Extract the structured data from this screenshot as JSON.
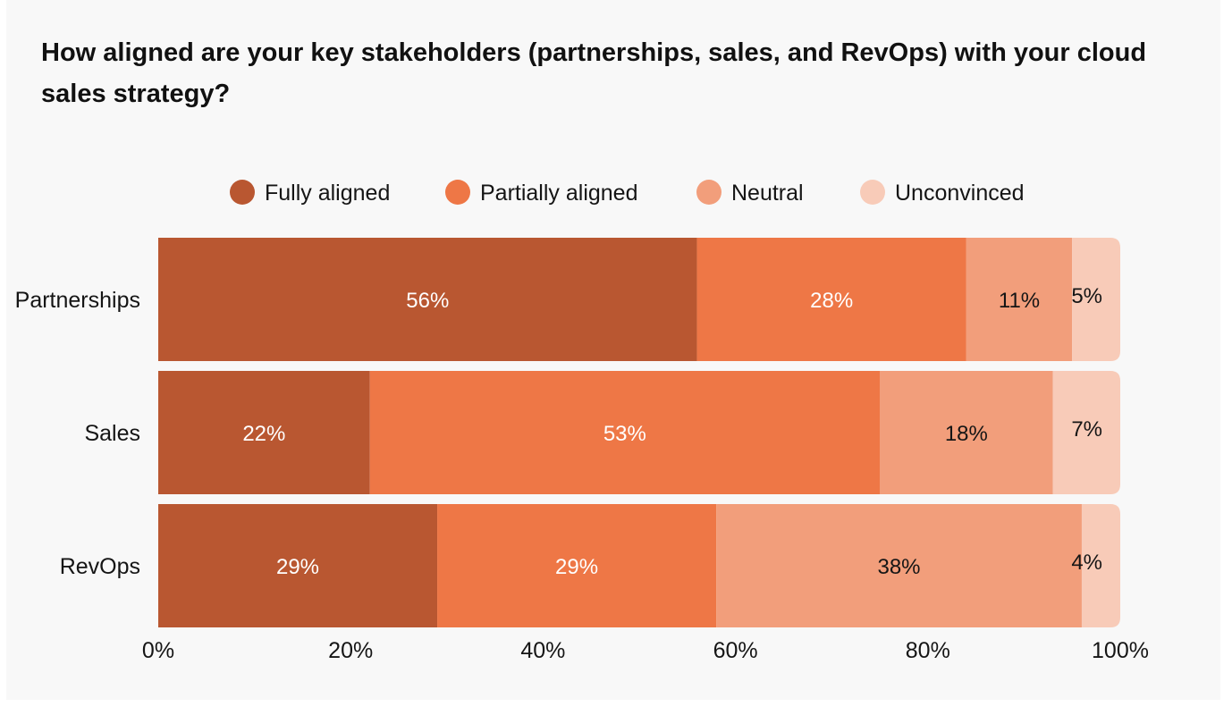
{
  "chart_data": {
    "type": "bar",
    "orientation": "horizontal",
    "stacked": true,
    "title": "How aligned are your key stakeholders (partnerships, sales, and RevOps) with your cloud sales strategy?",
    "categories": [
      "Partnerships",
      "Sales",
      "RevOps"
    ],
    "series": [
      {
        "name": "Fully aligned",
        "color": "#b95731",
        "label_color": "#ffffff",
        "values": [
          56,
          22,
          29
        ]
      },
      {
        "name": "Partially aligned",
        "color": "#ee7746",
        "label_color": "#ffffff",
        "values": [
          28,
          53,
          29
        ]
      },
      {
        "name": "Neutral",
        "color": "#f29e7b",
        "label_color": "#151515",
        "values": [
          11,
          18,
          38
        ]
      },
      {
        "name": "Unconvinced",
        "color": "#f8cbb8",
        "label_color": "#151515",
        "values": [
          5,
          7,
          4
        ]
      }
    ],
    "xlim": [
      0,
      100
    ],
    "x_ticks": [
      "0%",
      "20%",
      "40%",
      "60%",
      "80%",
      "100%"
    ],
    "x_tick_values": [
      0,
      20,
      40,
      60,
      80,
      100
    ],
    "legend": "top",
    "grid": false,
    "xlabel": "",
    "ylabel": ""
  }
}
